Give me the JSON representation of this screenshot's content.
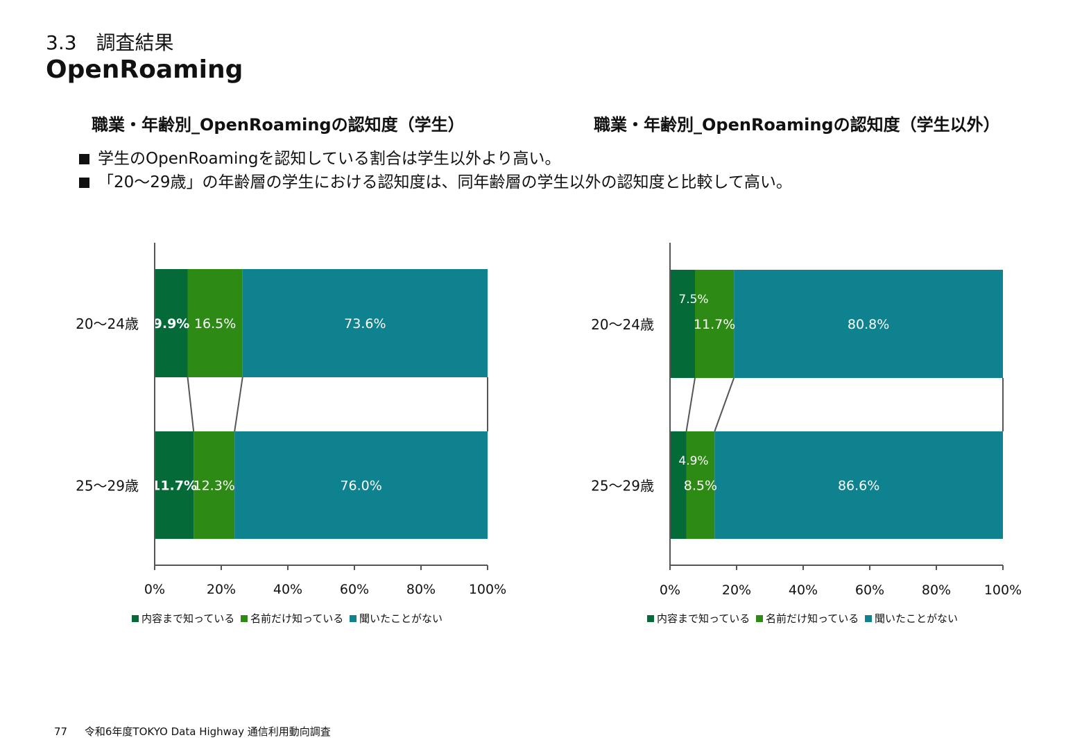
{
  "header": {
    "section": "3.3　調査結果",
    "title": "OpenRoaming"
  },
  "bullets": [
    "学生のOpenRoamingを認知している割合は学生以外より高い。",
    "「20～29歳」の年齢層の学生における認知度は、同年齢層の学生以外の認知度と比較して高い。"
  ],
  "footer": {
    "page": "77",
    "text": "令和6年度TOKYO Data Highway 通信利用動向調査"
  },
  "colors": {
    "known_well": "#046a38",
    "name_only": "#2d8a14",
    "never_heard": "#0e828e"
  },
  "chart_data": [
    {
      "type": "bar",
      "orientation": "horizontal",
      "stacked": "100%",
      "title": "職業・年齢別_OpenRoamingの認知度（学生）",
      "categories": [
        "20～24歳",
        "25～29歳"
      ],
      "series": [
        {
          "name": "内容まで知っている",
          "values": [
            9.9,
            11.7
          ],
          "labels": [
            "9.9%",
            "11.7%"
          ],
          "color": "#046a38"
        },
        {
          "name": "名前だけ知っている",
          "values": [
            16.5,
            12.3
          ],
          "labels": [
            "16.5%",
            "12.3%"
          ],
          "color": "#2d8a14"
        },
        {
          "name": "聞いたことがない",
          "values": [
            73.6,
            76.0
          ],
          "labels": [
            "73.6%",
            "76.0%"
          ],
          "color": "#0e828e"
        }
      ],
      "xlim": [
        0,
        100
      ],
      "x_ticks": [
        "0%",
        "20%",
        "40%",
        "60%",
        "80%",
        "100%"
      ],
      "legend": "bottom",
      "grid": false,
      "series_lines": true
    },
    {
      "type": "bar",
      "orientation": "horizontal",
      "stacked": "100%",
      "title": "職業・年齢別_OpenRoamingの認知度（学生以外）",
      "categories": [
        "20～24歳",
        "25～29歳"
      ],
      "series": [
        {
          "name": "内容まで知っている",
          "values": [
            7.5,
            4.9
          ],
          "labels": [
            "7.5%",
            "4.9%"
          ],
          "color": "#046a38"
        },
        {
          "name": "名前だけ知っている",
          "values": [
            11.7,
            8.5
          ],
          "labels": [
            "11.7%",
            "8.5%"
          ],
          "color": "#2d8a14"
        },
        {
          "name": "聞いたことがない",
          "values": [
            80.8,
            86.6
          ],
          "labels": [
            "80.8%",
            "86.6%"
          ],
          "color": "#0e828e"
        }
      ],
      "xlim": [
        0,
        100
      ],
      "x_ticks": [
        "0%",
        "20%",
        "40%",
        "60%",
        "80%",
        "100%"
      ],
      "legend": "bottom",
      "grid": false,
      "series_lines": true
    }
  ]
}
